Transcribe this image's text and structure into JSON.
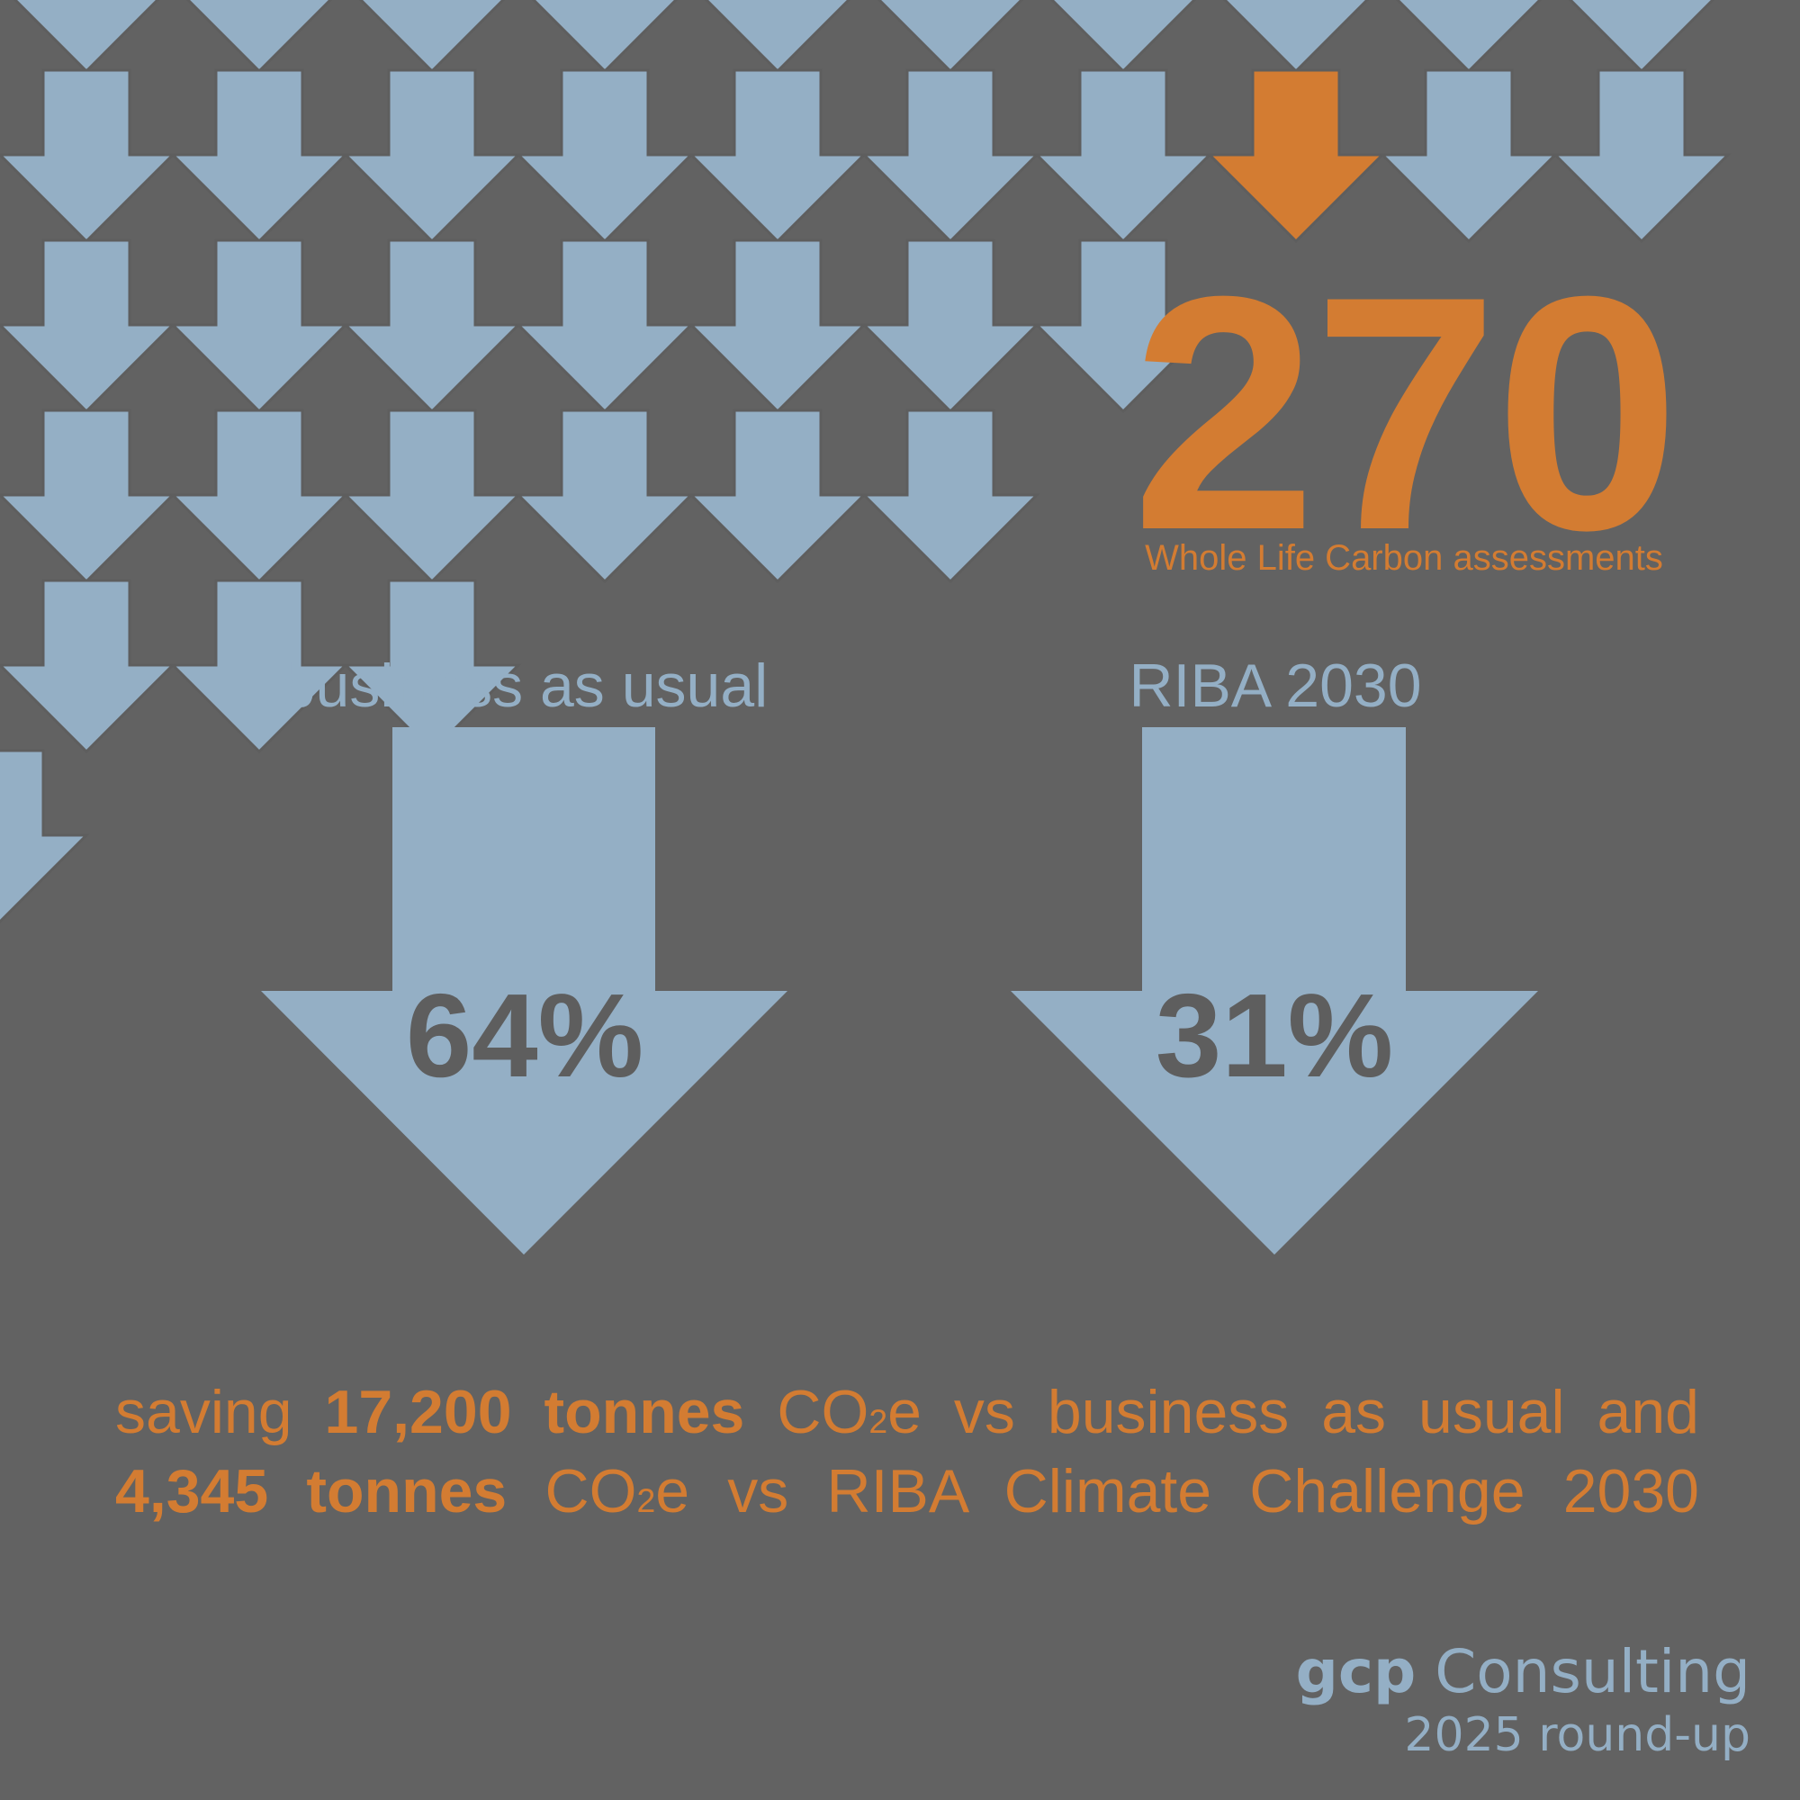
{
  "colors": {
    "background": "#626262",
    "light_blue": "#94afc5",
    "orange": "#d37c32",
    "outline": "#5e5e5e",
    "percent_text": "#5e5e5e"
  },
  "headline": {
    "number": "270",
    "caption": "Whole Life Carbon assessments"
  },
  "comparisons": [
    {
      "label": "business as usual",
      "value": "64%"
    },
    {
      "label": "RIBA 2030",
      "value": "31%"
    }
  ],
  "saving": {
    "line1_prefix": "saving ",
    "line1_amount": "17,200 tonnes",
    "line1_co": " CO",
    "line1_sub": "2",
    "line1_suffix": "e vs business as usual and",
    "line2_amount": "4,345 tonnes",
    "line2_co": " CO",
    "line2_sub": "2",
    "line2_suffix": "e vs RIBA Climate Challenge 2030"
  },
  "brand": {
    "name_bold": "gcp",
    "name_rest": " Consulting",
    "tagline": "2025 round-up"
  }
}
